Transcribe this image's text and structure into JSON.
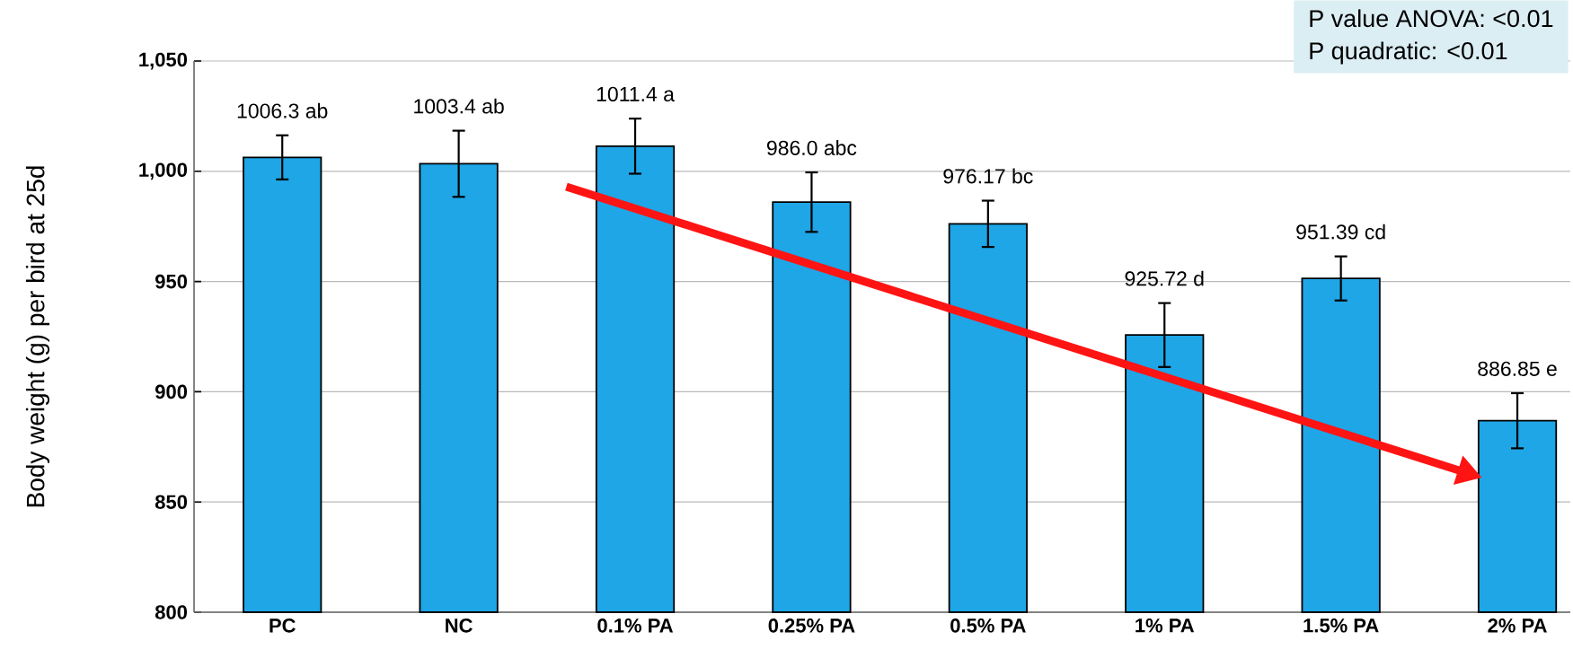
{
  "chart_data": {
    "type": "bar",
    "ylabel": "Body weight (g) per bird at 25d",
    "categories": [
      "PC",
      "NC",
      "0.1% PA",
      "0.25% PA",
      "0.5% PA",
      "1% PA",
      "1.5% PA",
      "2% PA"
    ],
    "values": [
      1006.3,
      1003.4,
      1011.4,
      986.0,
      976.17,
      925.72,
      951.39,
      886.85
    ],
    "errors": [
      10,
      15,
      12.5,
      13.5,
      10.5,
      14.5,
      10,
      12.5
    ],
    "value_labels": [
      "1006.3  ab",
      "1003.4 ab",
      "1011.4 a",
      "986.0 abc",
      "976.17 bc",
      "925.72 d",
      "951.39 cd",
      "886.85 e"
    ],
    "color": "#1ea6e6",
    "ylim": [
      800,
      1050
    ],
    "yticks": [
      800,
      850,
      900,
      950,
      {
        "value": 1000,
        "label": "1,000"
      },
      {
        "value": 1050,
        "label": "1,050"
      }
    ],
    "grid": "y",
    "annotations": [
      "P value ANOVA: <0.01",
      "P quadratic: <0.01"
    ]
  }
}
